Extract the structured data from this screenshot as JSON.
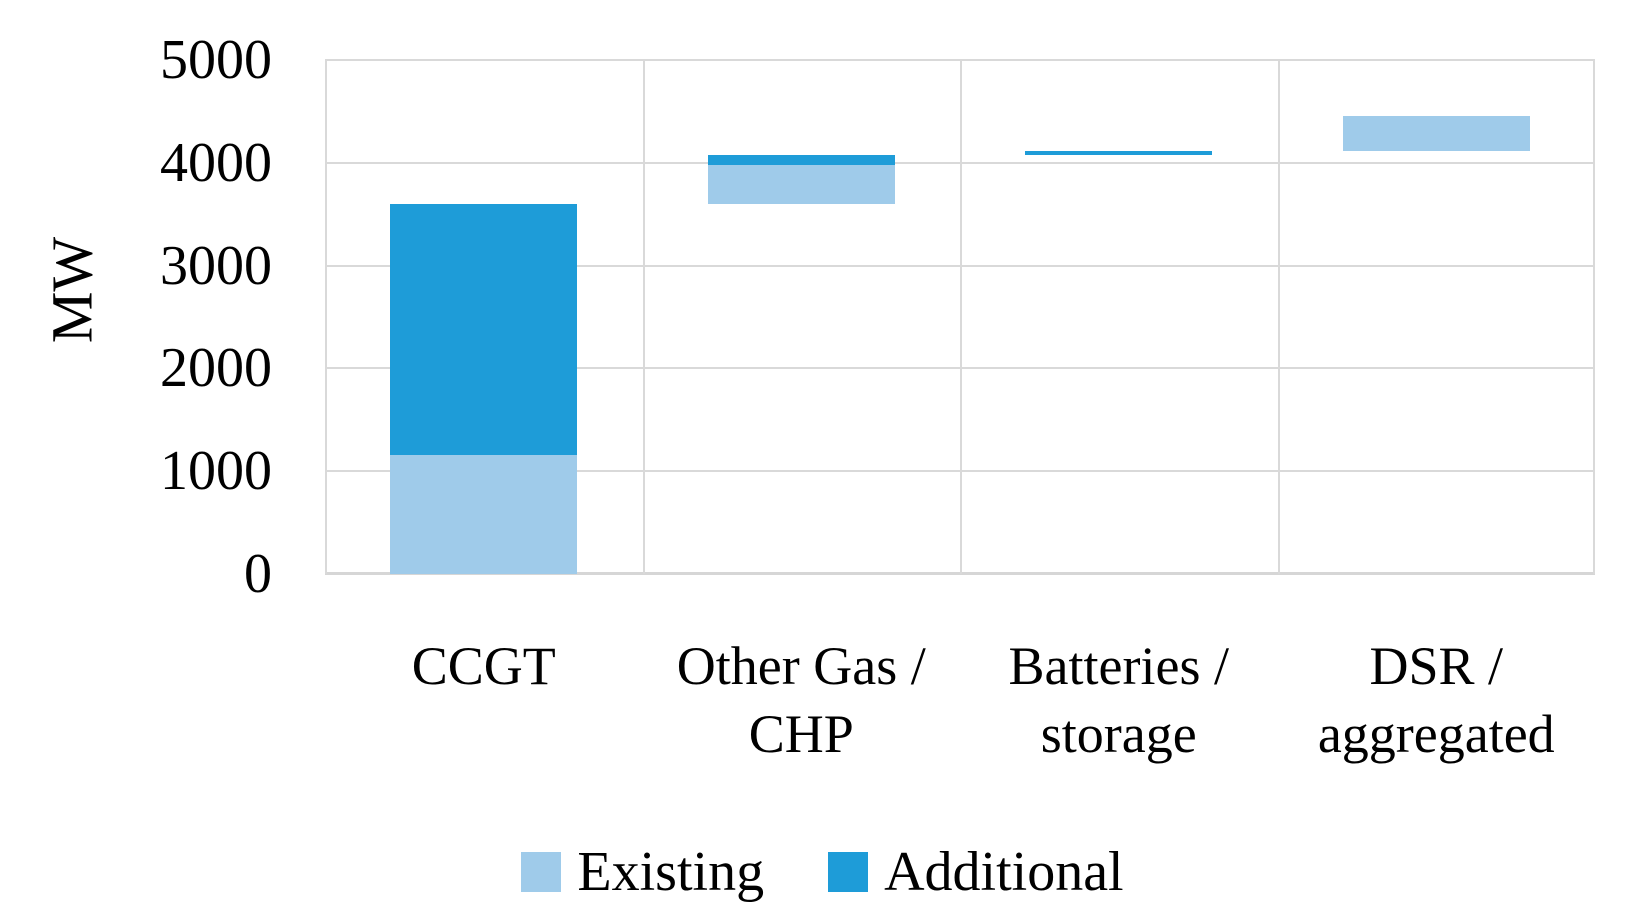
{
  "chart_data": {
    "type": "bar",
    "subtype": "stacked-waterfall",
    "title": "",
    "xlabel": "",
    "ylabel": "MW",
    "ylim": [
      0,
      5000
    ],
    "yticks": [
      0,
      1000,
      2000,
      3000,
      4000,
      5000
    ],
    "ytick_labels": [
      "0",
      "1000",
      "2000",
      "3000",
      "4000",
      "5000"
    ],
    "grid": true,
    "legend_position": "bottom",
    "categories": [
      "CCGT",
      "Other Gas / CHP",
      "Batteries / storage",
      "DSR / aggregated"
    ],
    "category_label_lines": [
      [
        "CCGT"
      ],
      [
        "Other Gas /",
        "CHP"
      ],
      [
        "Batteries /",
        "storage"
      ],
      [
        "DSR /",
        "aggregated"
      ]
    ],
    "bar_base": [
      0,
      3600,
      4075,
      4115
    ],
    "series": [
      {
        "name": "Existing",
        "color": "#9FCBEA",
        "values": [
          1160,
          380,
          0,
          345
        ]
      },
      {
        "name": "Additional",
        "color": "#1E9CD8",
        "values": [
          2440,
          95,
          40,
          0
        ]
      }
    ],
    "cumulative_totals": [
      3600,
      4075,
      4115,
      4460
    ]
  },
  "colors": {
    "existing": "#9FCBEA",
    "additional": "#1E9CD8",
    "gridline": "#D9D9D9",
    "text": "#000000",
    "background": "#FFFFFF"
  },
  "legend": {
    "items": [
      {
        "label": "Existing",
        "color": "#9FCBEA"
      },
      {
        "label": "Additional",
        "color": "#1E9CD8"
      }
    ]
  }
}
